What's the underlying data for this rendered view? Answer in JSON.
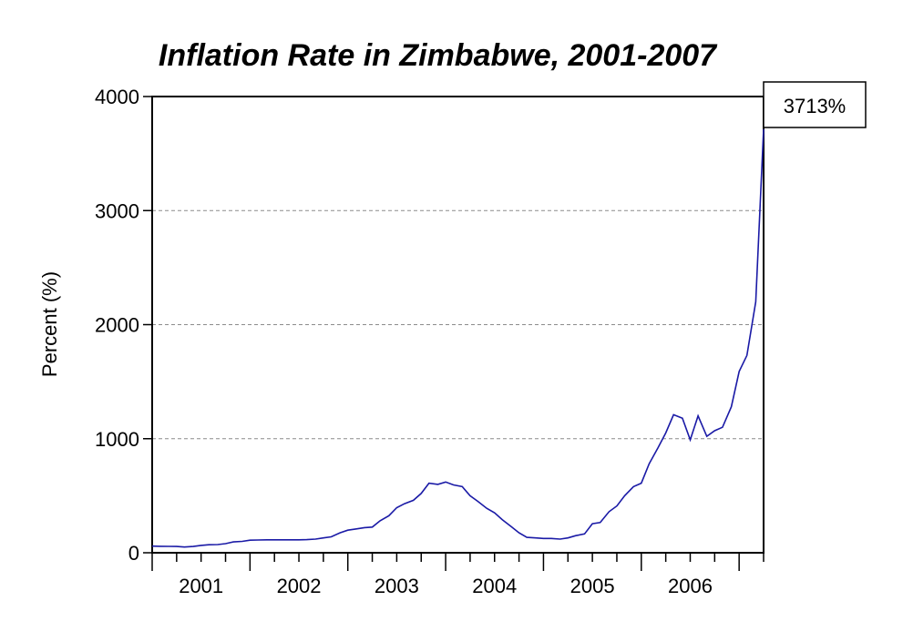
{
  "chart_data": {
    "type": "line",
    "title": "Inflation Rate in Zimbabwe, 2001-2007",
    "xlabel": "",
    "ylabel": "Percent (%)",
    "ylim": [
      0,
      4000
    ],
    "yticks": [
      0,
      1000,
      2000,
      3000,
      4000
    ],
    "xticks": [
      "2001",
      "2002",
      "2003",
      "2004",
      "2005",
      "2006"
    ],
    "xlim": [
      2001.0,
      2007.25
    ],
    "grid": "horizontal dashed",
    "colors": {
      "line": "#1a1aa6",
      "grid": "#8c8c8c",
      "axis": "#000000"
    },
    "annotation": {
      "text": "3713%",
      "x": 2007.25,
      "y": 3713
    },
    "series": [
      {
        "x": [
          2001.0,
          2001.08,
          2001.17,
          2001.25,
          2001.33,
          2001.42,
          2001.5,
          2001.58,
          2001.67,
          2001.75,
          2001.83,
          2001.92,
          2002.0,
          2002.08,
          2002.17,
          2002.25,
          2002.33,
          2002.42,
          2002.5,
          2002.58,
          2002.67,
          2002.75,
          2002.83,
          2002.92,
          2003.0,
          2003.08,
          2003.17,
          2003.25,
          2003.33,
          2003.42,
          2003.5,
          2003.58,
          2003.67,
          2003.75,
          2003.83,
          2003.92,
          2004.0,
          2004.08,
          2004.17,
          2004.25,
          2004.33,
          2004.42,
          2004.5,
          2004.58,
          2004.67,
          2004.75,
          2004.83,
          2004.92,
          2005.0,
          2005.08,
          2005.17,
          2005.25,
          2005.33,
          2005.42,
          2005.5,
          2005.58,
          2005.67,
          2005.75,
          2005.83,
          2005.92,
          2006.0,
          2006.08,
          2006.17,
          2006.25,
          2006.33,
          2006.42,
          2006.5,
          2006.58,
          2006.67,
          2006.75,
          2006.83,
          2006.92,
          2007.0,
          2007.08,
          2007.17,
          2007.25
        ],
        "y": [
          58,
          57,
          56,
          55,
          50,
          55,
          65,
          70,
          72,
          80,
          95,
          100,
          110,
          112,
          113,
          113,
          113,
          113,
          113,
          115,
          120,
          130,
          140,
          175,
          198,
          208,
          220,
          225,
          280,
          325,
          395,
          430,
          460,
          520,
          610,
          600,
          620,
          595,
          580,
          500,
          450,
          390,
          350,
          290,
          230,
          175,
          135,
          130,
          125,
          125,
          120,
          130,
          150,
          165,
          255,
          265,
          360,
          410,
          500,
          580,
          610,
          780,
          920,
          1050,
          1210,
          1180,
          990,
          1200,
          1020,
          1070,
          1100,
          1280,
          1590,
          1730,
          2200,
          3713
        ]
      }
    ]
  }
}
